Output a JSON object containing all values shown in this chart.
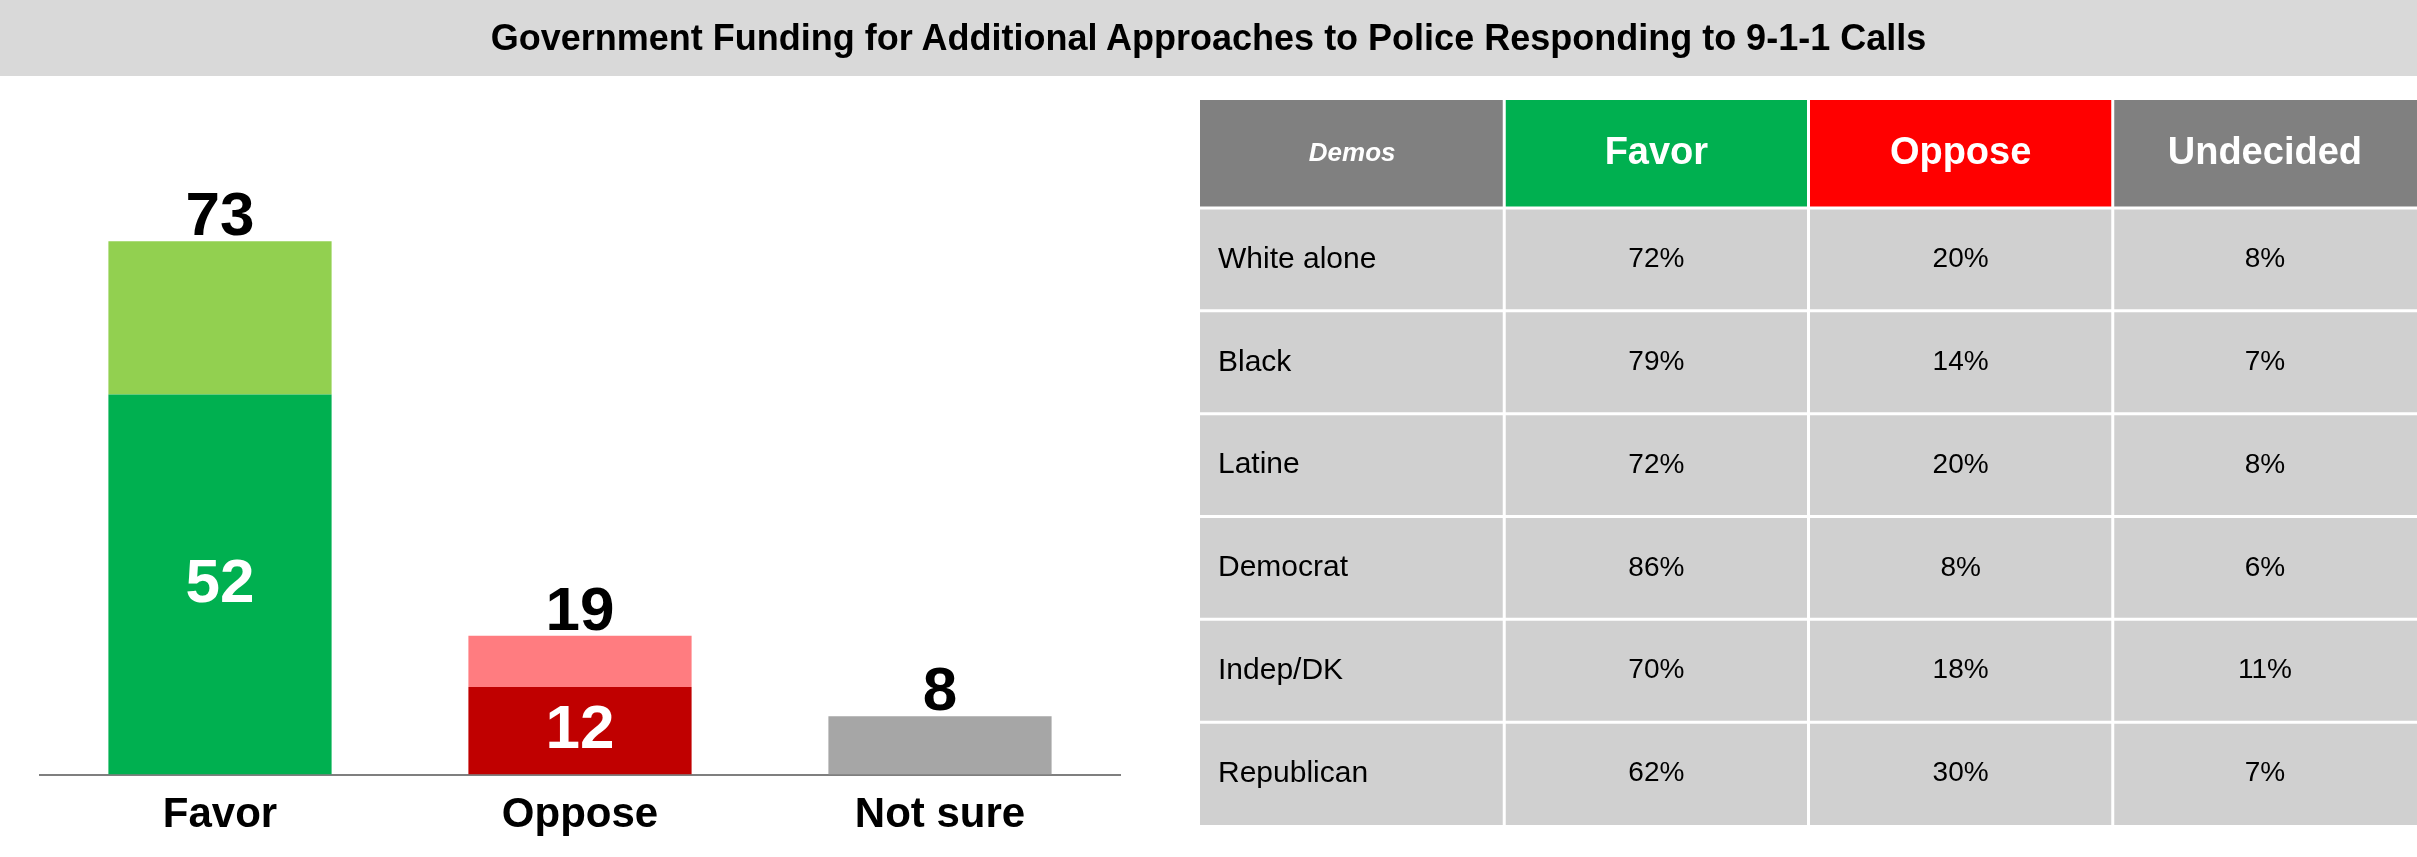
{
  "chart_data": [
    {
      "type": "bar",
      "title": "Government Funding for Additional Approaches to Police Responding to 9-1-1 Calls",
      "categories": [
        "Favor",
        "Oppose",
        "Not sure"
      ],
      "stacked": true,
      "tick_labels": "x",
      "legend": false,
      "series": [
        {
          "values": [
            52,
            12,
            8
          ],
          "colors": [
            "#00b050",
            "#c00000",
            "#a6a6a6"
          ],
          "value_labels": [
            "52",
            "12",
            null
          ]
        },
        {
          "values": [
            21,
            7,
            null
          ],
          "colors": [
            "#92d050",
            "#ff7c80",
            "#a6a6a6"
          ]
        }
      ],
      "totals": [
        "73",
        "19",
        "8"
      ]
    },
    {
      "type": "heatmap",
      "ylabel": "Demos",
      "categories": [
        "Favor",
        "Oppose",
        "Undecided"
      ],
      "colors": [
        "#00b050",
        "#ff0000",
        "#808080"
      ],
      "y_categories": [
        "White alone",
        "Black",
        "Latine",
        "Democrat",
        "Indep/DK",
        "Republican"
      ],
      "cells": [
        [
          72,
          20,
          8
        ],
        [
          79,
          14,
          7
        ],
        [
          72,
          20,
          8
        ],
        [
          86,
          8,
          6
        ],
        [
          70,
          18,
          11
        ],
        [
          62,
          30,
          7
        ]
      ],
      "cell_labels": [
        [
          "72%",
          "20%",
          "8%"
        ],
        [
          "79%",
          "14%",
          "7%"
        ],
        [
          "72%",
          "20%",
          "8%"
        ],
        [
          "86%",
          "8%",
          "6%"
        ],
        [
          "70%",
          "18%",
          "11%"
        ],
        [
          "62%",
          "30%",
          "7%"
        ]
      ]
    }
  ]
}
